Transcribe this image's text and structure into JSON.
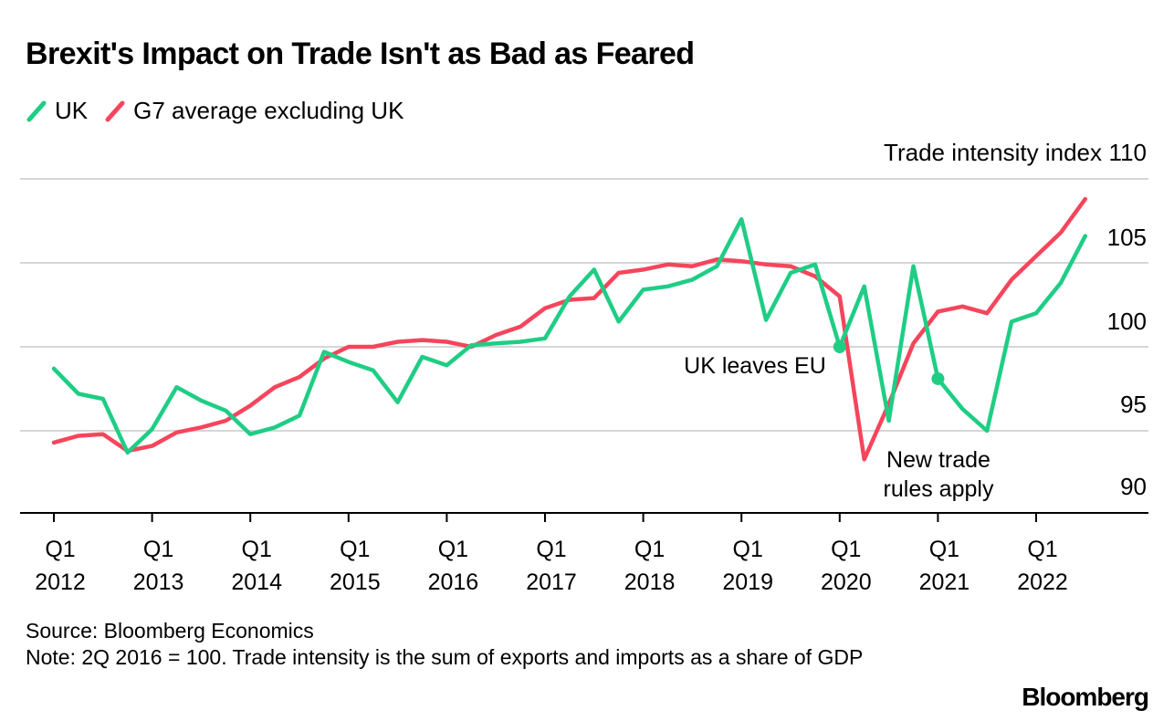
{
  "title": "Brexit's Impact on Trade Isn't as Bad as Feared",
  "footer": {
    "source": "Source: Bloomberg Economics",
    "note": "Note: 2Q 2016 = 100. Trade intensity is the sum of exports and imports as a share of GDP"
  },
  "brand": "Bloomberg",
  "colors": {
    "uk": "#1fcd85",
    "g7": "#f5455c",
    "grid": "#d6d6d6",
    "axis": "#000000"
  },
  "chart_data": {
    "type": "line",
    "title": "Brexit's Impact on Trade Isn't as Bad as Feared",
    "ylabel": "Trade intensity index",
    "ylim": [
      90,
      110
    ],
    "yticks": [
      90,
      95,
      100,
      105,
      110
    ],
    "xlim": [
      0,
      44
    ],
    "x_ticks": [
      {
        "i": 0,
        "top": "Q1",
        "bottom": "2012"
      },
      {
        "i": 4,
        "top": "Q1",
        "bottom": "2013"
      },
      {
        "i": 8,
        "top": "Q1",
        "bottom": "2014"
      },
      {
        "i": 12,
        "top": "Q1",
        "bottom": "2015"
      },
      {
        "i": 16,
        "top": "Q1",
        "bottom": "2016"
      },
      {
        "i": 20,
        "top": "Q1",
        "bottom": "2017"
      },
      {
        "i": 24,
        "top": "Q1",
        "bottom": "2018"
      },
      {
        "i": 28,
        "top": "Q1",
        "bottom": "2019"
      },
      {
        "i": 32,
        "top": "Q1",
        "bottom": "2020"
      },
      {
        "i": 36,
        "top": "Q1",
        "bottom": "2021"
      },
      {
        "i": 40,
        "top": "Q1",
        "bottom": "2022"
      }
    ],
    "series": [
      {
        "name": "UK",
        "key": "uk",
        "values": [
          98.7,
          97.2,
          96.9,
          93.7,
          95.1,
          97.6,
          96.8,
          96.2,
          94.8,
          95.2,
          95.9,
          99.7,
          99.1,
          98.6,
          96.7,
          99.4,
          98.9,
          100.1,
          100.2,
          100.3,
          100.5,
          103.0,
          104.6,
          101.5,
          103.4,
          103.6,
          104.0,
          104.8,
          107.6,
          101.6,
          104.4,
          104.9,
          100.0,
          103.6,
          95.6,
          104.8,
          98.1,
          96.3,
          95.0,
          101.5,
          102.0,
          103.8,
          106.6
        ]
      },
      {
        "name": "G7 average excluding UK",
        "key": "g7",
        "values": [
          94.3,
          94.7,
          94.8,
          93.8,
          94.1,
          94.9,
          95.2,
          95.6,
          96.5,
          97.6,
          98.2,
          99.3,
          100.0,
          100.0,
          100.3,
          100.4,
          100.3,
          100.0,
          100.7,
          101.2,
          102.3,
          102.8,
          102.9,
          104.4,
          104.6,
          104.9,
          104.8,
          105.2,
          105.1,
          104.9,
          104.8,
          104.2,
          103.0,
          93.3,
          96.6,
          100.2,
          102.1,
          102.4,
          102.0,
          104.0,
          105.4,
          106.8,
          108.8
        ]
      }
    ],
    "annotations": [
      {
        "text": "UK leaves EU",
        "series": "uk",
        "i": 32,
        "lines": [
          "UK leaves EU"
        ]
      },
      {
        "text": "New trade rules apply",
        "series": "uk",
        "i": 36,
        "lines": [
          "New trade",
          "rules apply"
        ]
      }
    ]
  }
}
